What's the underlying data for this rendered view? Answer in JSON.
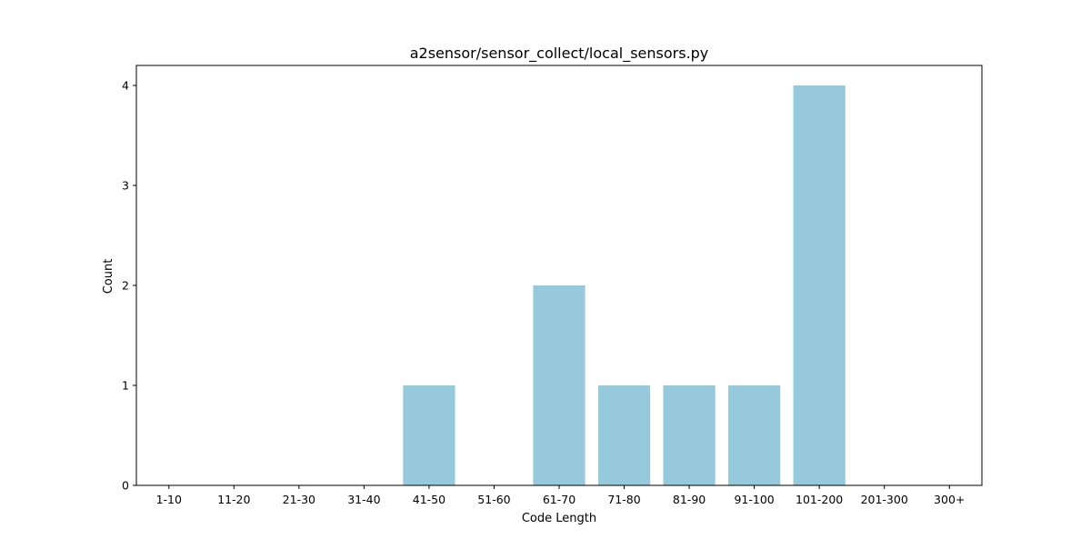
{
  "chart_data": {
    "type": "bar",
    "title": "a2sensor/sensor_collect/local_sensors.py",
    "xlabel": "Code Length",
    "ylabel": "Count",
    "categories": [
      "1-10",
      "11-20",
      "21-30",
      "31-40",
      "41-50",
      "51-60",
      "61-70",
      "71-80",
      "81-90",
      "91-100",
      "101-200",
      "201-300",
      "300+"
    ],
    "values": [
      0,
      0,
      0,
      0,
      1,
      0,
      2,
      1,
      1,
      1,
      4,
      0,
      0
    ],
    "ylim": [
      0,
      4.2
    ],
    "yticks": [
      0,
      1,
      2,
      3,
      4
    ],
    "bar_color": "#96c9dc",
    "grid": false,
    "legend": "none"
  }
}
